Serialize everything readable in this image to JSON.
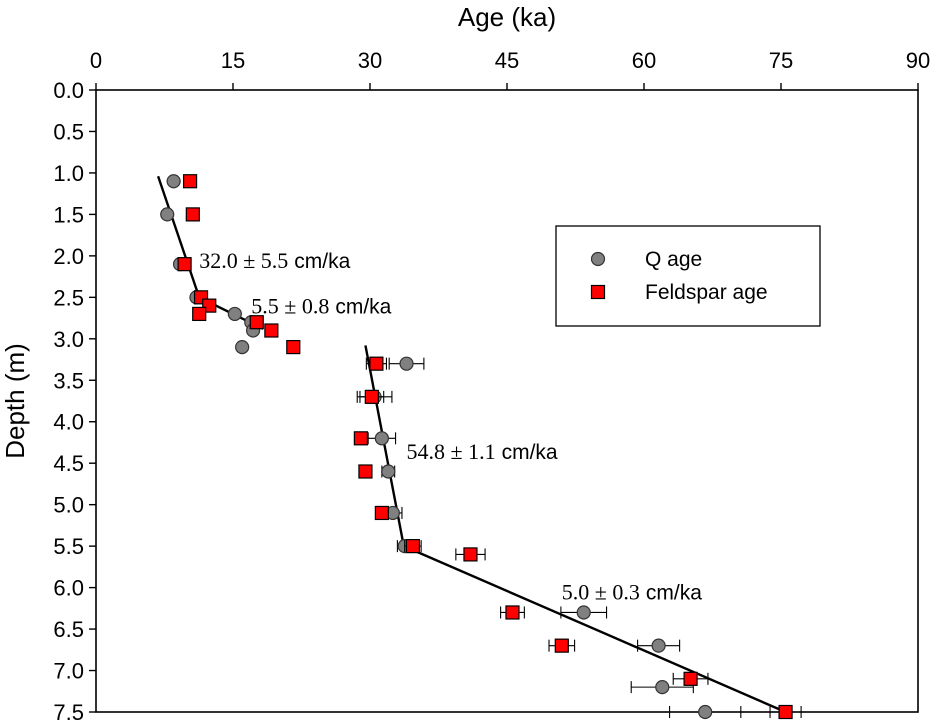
{
  "chart_data": {
    "type": "scatter",
    "xlabel": "Age (ka)",
    "ylabel": "Depth (m)",
    "x_axis_position": "top",
    "y_axis_inverted": true,
    "xlim": [
      0,
      90
    ],
    "ylim": [
      0,
      7.5
    ],
    "x_ticks": [
      0,
      15,
      30,
      45,
      60,
      75,
      90
    ],
    "y_ticks": [
      "0.0",
      "0.5",
      "1.0",
      "1.5",
      "2.0",
      "2.5",
      "3.0",
      "3.5",
      "4.0",
      "4.5",
      "5.0",
      "5.5",
      "6.0",
      "6.5",
      "7.0",
      "7.5"
    ],
    "grid": false,
    "legend_position": "right",
    "series": [
      {
        "name": "Q age",
        "marker": "circle",
        "color": "#808080",
        "points": [
          {
            "x": 8.5,
            "y": 1.1
          },
          {
            "x": 7.8,
            "y": 1.5
          },
          {
            "x": 9.2,
            "y": 2.1
          },
          {
            "x": 11.0,
            "y": 2.5
          },
          {
            "x": 15.2,
            "y": 2.7
          },
          {
            "x": 17.0,
            "y": 2.8
          },
          {
            "x": 17.2,
            "y": 2.9
          },
          {
            "x": 16.0,
            "y": 3.1
          },
          {
            "x": 34.0,
            "y": 3.3,
            "err": 1.9
          },
          {
            "x": 30.5,
            "y": 3.7,
            "err": 1.9
          },
          {
            "x": 31.3,
            "y": 4.2,
            "err": 1.5
          },
          {
            "x": 32.0,
            "y": 4.6,
            "err": 0.7
          },
          {
            "x": 32.5,
            "y": 5.1,
            "err": 1.0
          },
          {
            "x": 33.8,
            "y": 5.5,
            "err": 0.8
          },
          {
            "x": 53.4,
            "y": 6.3,
            "err": 2.5
          },
          {
            "x": 61.6,
            "y": 6.7,
            "err": 2.3
          },
          {
            "x": 62.0,
            "y": 7.2,
            "err": 3.4
          },
          {
            "x": 66.7,
            "y": 7.5,
            "err": 3.9
          }
        ]
      },
      {
        "name": "Feldspar age",
        "marker": "square",
        "color": "#ff0000",
        "points": [
          {
            "x": 10.3,
            "y": 1.1
          },
          {
            "x": 10.6,
            "y": 1.5
          },
          {
            "x": 9.7,
            "y": 2.1
          },
          {
            "x": 11.5,
            "y": 2.5
          },
          {
            "x": 12.4,
            "y": 2.6
          },
          {
            "x": 11.3,
            "y": 2.7
          },
          {
            "x": 17.6,
            "y": 2.8
          },
          {
            "x": 19.2,
            "y": 2.9
          },
          {
            "x": 21.6,
            "y": 3.1
          },
          {
            "x": 30.7,
            "y": 3.3,
            "err": 1.1
          },
          {
            "x": 30.2,
            "y": 3.7,
            "err": 1.3
          },
          {
            "x": 29.0,
            "y": 4.2,
            "err": 0.5
          },
          {
            "x": 29.5,
            "y": 4.6,
            "err": 0.5
          },
          {
            "x": 31.3,
            "y": 5.1,
            "err": 0.6
          },
          {
            "x": 34.7,
            "y": 5.5,
            "err": 0.9
          },
          {
            "x": 41.0,
            "y": 5.6,
            "err": 1.6
          },
          {
            "x": 45.6,
            "y": 6.3,
            "err": 1.3
          },
          {
            "x": 51.0,
            "y": 6.7,
            "err": 1.4
          },
          {
            "x": 65.1,
            "y": 7.1,
            "err": 1.9
          },
          {
            "x": 75.5,
            "y": 7.5,
            "err": 1.7
          }
        ]
      }
    ],
    "fit_lines": [
      {
        "points": [
          [
            6.8,
            1.04
          ],
          [
            11.3,
            2.5
          ],
          [
            18.3,
            2.88
          ]
        ]
      },
      {
        "points": [
          [
            29.5,
            3.08
          ],
          [
            33.7,
            5.5
          ],
          [
            75.5,
            7.5
          ]
        ]
      }
    ],
    "annotations": [
      {
        "value": "32.0 ± 5.5",
        "unit": "cm/ka",
        "x": 11.3,
        "y": 2.05
      },
      {
        "value": "5.5 ± 0.8",
        "unit": "cm/ka",
        "x": 17.0,
        "y": 2.6
      },
      {
        "value": "54.8 ± 1.1",
        "unit": "cm/ka",
        "x": 34.0,
        "y": 4.35
      },
      {
        "value": "5.0 ± 0.3",
        "unit": "cm/ka",
        "x": 51.0,
        "y": 6.05
      }
    ]
  }
}
